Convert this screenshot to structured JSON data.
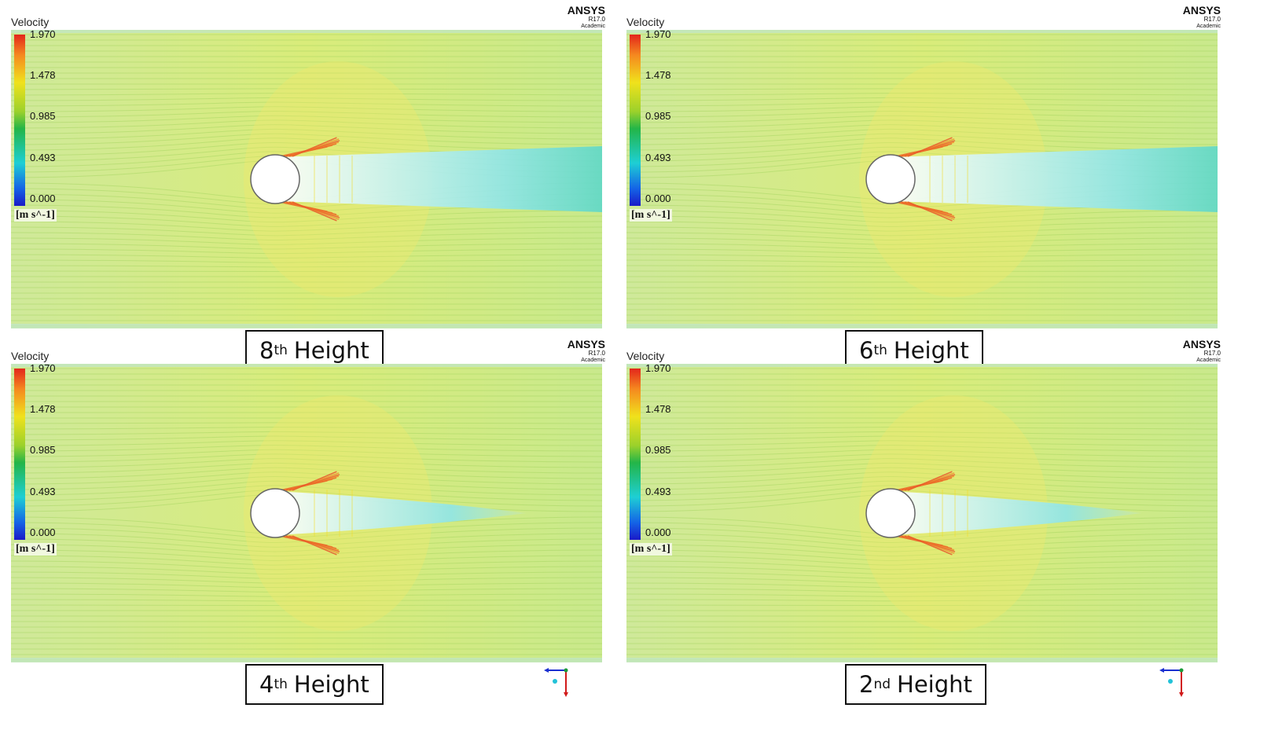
{
  "legend": {
    "title": "Velocity",
    "ticks": [
      "1.970",
      "1.478",
      "0.985",
      "0.493",
      "0.000"
    ],
    "unit": "[m s^-1]"
  },
  "brand": {
    "name": "ANSYS",
    "version": "R17.0",
    "edition": "Academic"
  },
  "panels": [
    {
      "height_num": "8",
      "height_suffix": "th",
      "height_word": "Height"
    },
    {
      "height_num": "6",
      "height_suffix": "th",
      "height_word": "Height"
    },
    {
      "height_num": "4",
      "height_suffix": "th",
      "height_word": "Height"
    },
    {
      "height_num": "2",
      "height_suffix": "nd",
      "height_word": "Height"
    }
  ],
  "colors": {
    "field": "#c8e87a",
    "cylinder": "#ffffff",
    "wake": "#6fe0e6",
    "high": "#f08a2a"
  }
}
